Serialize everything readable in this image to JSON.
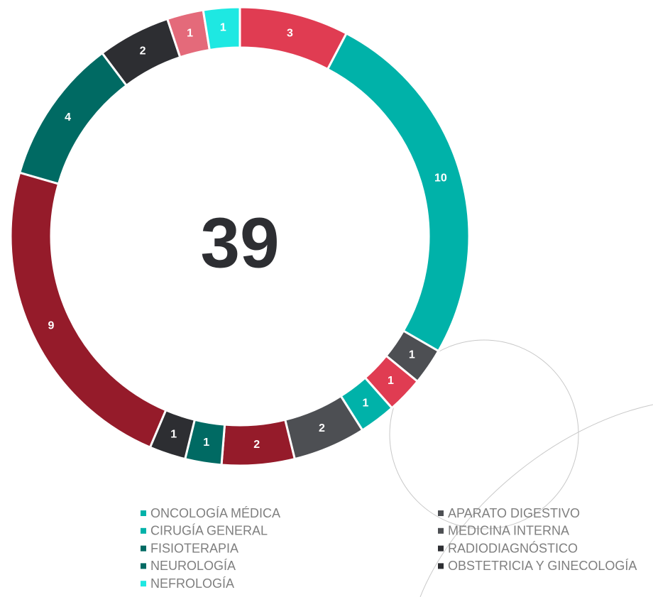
{
  "chart_data": {
    "type": "donut",
    "total": 39,
    "values": [
      3,
      10,
      1,
      1,
      1,
      2,
      2,
      1,
      1,
      9,
      4,
      2,
      1,
      1
    ],
    "colors": [
      "#e03c52",
      "#00b2a9",
      "#4d4f53",
      "#e03c52",
      "#00b2a9",
      "#4d4f53",
      "#951b2a",
      "#006a63",
      "#2d2e32",
      "#951b2a",
      "#006a63",
      "#2d2e32",
      "#e46a7a",
      "#1ee8e2"
    ],
    "legend": [
      {
        "name": "ONCOLOGÍA MÉDICA",
        "color": "#00b2a9"
      },
      {
        "name": "CIRUGÍA GENERAL",
        "color": "#00b2a9"
      },
      {
        "name": "FISIOTERAPIA",
        "color": "#006a63"
      },
      {
        "name": "NEUROLOGÍA",
        "color": "#006a63"
      },
      {
        "name": "NEFROLOGÍA",
        "color": "#1ee8e2"
      },
      {
        "name": "APARATO DIGESTIVO",
        "color": "#4d4f53"
      },
      {
        "name": "MEDICINA INTERNA",
        "color": "#4d4f53"
      },
      {
        "name": "RADIODIAGNÓSTICO",
        "color": "#2d2e32"
      },
      {
        "name": "OBSTETRICIA Y GINECOLOGÍA",
        "color": "#2d2e32"
      }
    ]
  }
}
